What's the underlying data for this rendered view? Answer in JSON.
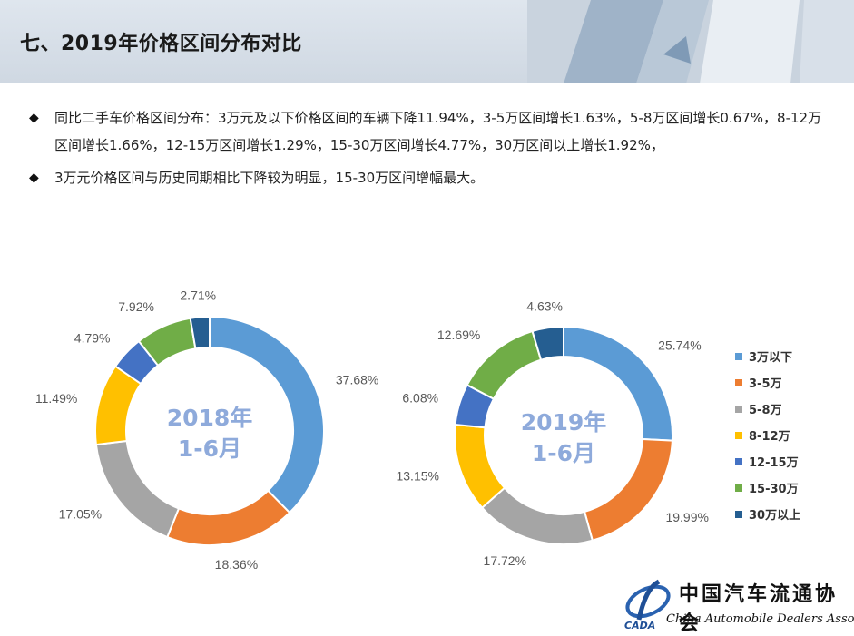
{
  "header": {
    "title": "七、2019年价格区间分布对比"
  },
  "bullets": {
    "b1": "同比二手车价格区间分布：3万元及以下价格区间的车辆下降11.94%，3-5万区间增长1.63%，5-8万区间增长0.67%，8-12万区间增长1.66%，12-15万区间增长1.29%，15-30万区间增长4.77%，30万区间以上增长1.92%，",
    "b2": "3万元价格区间与历史同期相比下降较为明显，15-30万区间增幅最大。"
  },
  "chart_data": [
    {
      "type": "pie",
      "style": "donut",
      "center_label": [
        "2018年",
        "1-6月"
      ],
      "categories": [
        "3万以下",
        "3-5万",
        "5-8万",
        "8-12万",
        "12-15万",
        "15-30万",
        "30万以上"
      ],
      "values": [
        37.68,
        18.36,
        17.05,
        11.49,
        4.79,
        7.92,
        2.71
      ],
      "labels": [
        "37.68%",
        "18.36%",
        "17.05%",
        "11.49%",
        "4.79%",
        "7.92%",
        "2.71%"
      ],
      "colors": [
        "#5b9bd5",
        "#ed7d31",
        "#a5a5a5",
        "#ffc000",
        "#4472c4",
        "#70ad47",
        "#255e91"
      ]
    },
    {
      "type": "pie",
      "style": "donut",
      "center_label": [
        "2019年",
        "1-6月"
      ],
      "categories": [
        "3万以下",
        "3-5万",
        "5-8万",
        "8-12万",
        "12-15万",
        "15-30万",
        "30万以上"
      ],
      "values": [
        25.74,
        19.99,
        17.72,
        13.15,
        6.08,
        12.69,
        4.63
      ],
      "labels": [
        "25.74%",
        "19.99%",
        "17.72%",
        "13.15%",
        "6.08%",
        "12.69%",
        "4.63%"
      ],
      "colors": [
        "#5b9bd5",
        "#ed7d31",
        "#a5a5a5",
        "#ffc000",
        "#4472c4",
        "#70ad47",
        "#255e91"
      ]
    }
  ],
  "legend": {
    "items": [
      {
        "label": "3万以下",
        "color": "#5b9bd5"
      },
      {
        "label": "3-5万",
        "color": "#ed7d31"
      },
      {
        "label": "5-8万",
        "color": "#a5a5a5"
      },
      {
        "label": "8-12万",
        "color": "#ffc000"
      },
      {
        "label": "12-15万",
        "color": "#4472c4"
      },
      {
        "label": "15-30万",
        "color": "#70ad47"
      },
      {
        "label": "30万以上",
        "color": "#255e91"
      }
    ]
  },
  "logo": {
    "name_cn": "中国汽车流通协会",
    "name_en": "China Automobile Dealers Association",
    "mark": "CADA"
  }
}
